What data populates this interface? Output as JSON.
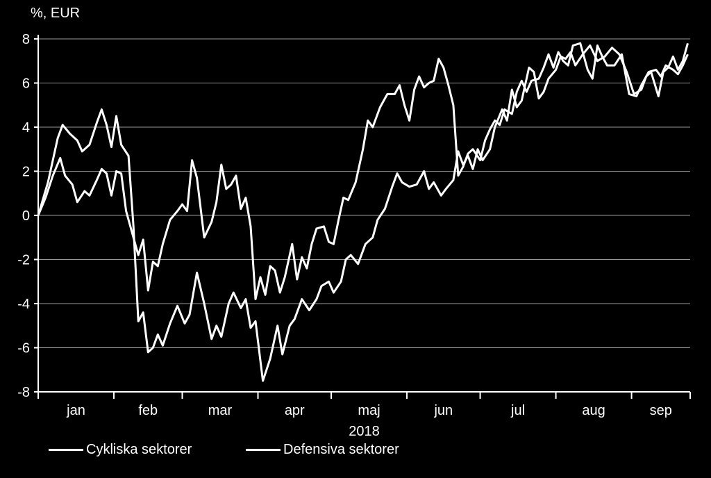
{
  "chart_data": {
    "type": "line",
    "unit_label": "%, EUR",
    "year_label": "2018",
    "xlabel": "",
    "ylabel": "",
    "ylim": [
      -8,
      8
    ],
    "yticks": [
      -8,
      -6,
      -4,
      -2,
      0,
      2,
      4,
      6,
      8
    ],
    "ytick_labels": [
      "-8",
      "-6",
      "-4",
      "-2",
      "0",
      "2",
      "4",
      "6",
      "8"
    ],
    "month_labels": [
      "jan",
      "feb",
      "mar",
      "apr",
      "maj",
      "jun",
      "jul",
      "aug",
      "sep"
    ],
    "grid": true,
    "legend_position": "bottom-left",
    "line_color": "#ffffff",
    "background": "#000000",
    "series": [
      {
        "name": "Cykliska sektorer",
        "points": [
          [
            "2018-01-01",
            0.0
          ],
          [
            "2018-01-05",
            1.5
          ],
          [
            "2018-01-09",
            3.5
          ],
          [
            "2018-01-11",
            4.1
          ],
          [
            "2018-01-14",
            3.7
          ],
          [
            "2018-01-17",
            3.4
          ],
          [
            "2018-01-19",
            2.9
          ],
          [
            "2018-01-22",
            3.2
          ],
          [
            "2018-01-25",
            4.2
          ],
          [
            "2018-01-27",
            4.8
          ],
          [
            "2018-01-29",
            4.1
          ],
          [
            "2018-01-31",
            3.1
          ],
          [
            "2018-02-02",
            4.5
          ],
          [
            "2018-02-04",
            3.2
          ],
          [
            "2018-02-07",
            2.7
          ],
          [
            "2018-02-09",
            -0.5
          ],
          [
            "2018-02-11",
            -4.8
          ],
          [
            "2018-02-13",
            -4.4
          ],
          [
            "2018-02-15",
            -6.2
          ],
          [
            "2018-02-17",
            -6.0
          ],
          [
            "2018-02-19",
            -5.4
          ],
          [
            "2018-02-21",
            -5.9
          ],
          [
            "2018-02-24",
            -4.9
          ],
          [
            "2018-02-27",
            -4.1
          ],
          [
            "2018-03-02",
            -4.9
          ],
          [
            "2018-03-04",
            -4.5
          ],
          [
            "2018-03-07",
            -2.6
          ],
          [
            "2018-03-10",
            -4.0
          ],
          [
            "2018-03-13",
            -5.6
          ],
          [
            "2018-03-15",
            -5.0
          ],
          [
            "2018-03-17",
            -5.5
          ],
          [
            "2018-03-20",
            -4.0
          ],
          [
            "2018-03-22",
            -3.5
          ],
          [
            "2018-03-25",
            -4.2
          ],
          [
            "2018-03-27",
            -3.8
          ],
          [
            "2018-03-29",
            -5.1
          ],
          [
            "2018-03-31",
            -4.8
          ],
          [
            "2018-04-03",
            -7.5
          ],
          [
            "2018-04-06",
            -6.5
          ],
          [
            "2018-04-09",
            -5.0
          ],
          [
            "2018-04-11",
            -6.3
          ],
          [
            "2018-04-14",
            -5.0
          ],
          [
            "2018-04-16",
            -4.7
          ],
          [
            "2018-04-19",
            -3.8
          ],
          [
            "2018-04-22",
            -4.3
          ],
          [
            "2018-04-25",
            -3.8
          ],
          [
            "2018-04-27",
            -3.2
          ],
          [
            "2018-04-30",
            -3.0
          ],
          [
            "2018-05-02",
            -3.5
          ],
          [
            "2018-05-05",
            -3.0
          ],
          [
            "2018-05-07",
            -2.0
          ],
          [
            "2018-05-09",
            -1.8
          ],
          [
            "2018-05-12",
            -2.2
          ],
          [
            "2018-05-15",
            -1.3
          ],
          [
            "2018-05-18",
            -1.0
          ],
          [
            "2018-05-20",
            -0.2
          ],
          [
            "2018-05-23",
            0.3
          ],
          [
            "2018-05-26",
            1.3
          ],
          [
            "2018-05-28",
            1.9
          ],
          [
            "2018-05-30",
            1.5
          ],
          [
            "2018-06-02",
            1.3
          ],
          [
            "2018-06-05",
            1.4
          ],
          [
            "2018-06-08",
            2.0
          ],
          [
            "2018-06-10",
            1.2
          ],
          [
            "2018-06-12",
            1.5
          ],
          [
            "2018-06-15",
            0.9
          ],
          [
            "2018-06-17",
            1.2
          ],
          [
            "2018-06-20",
            1.6
          ],
          [
            "2018-06-22",
            2.9
          ],
          [
            "2018-06-24",
            2.3
          ],
          [
            "2018-06-26",
            2.7
          ],
          [
            "2018-06-28",
            2.1
          ],
          [
            "2018-06-30",
            3.0
          ],
          [
            "2018-07-02",
            2.5
          ],
          [
            "2018-07-05",
            3.0
          ],
          [
            "2018-07-07",
            4.0
          ],
          [
            "2018-07-10",
            4.8
          ],
          [
            "2018-07-12",
            4.3
          ],
          [
            "2018-07-14",
            5.7
          ],
          [
            "2018-07-16",
            4.9
          ],
          [
            "2018-07-18",
            5.2
          ],
          [
            "2018-07-21",
            6.7
          ],
          [
            "2018-07-23",
            6.5
          ],
          [
            "2018-07-25",
            5.3
          ],
          [
            "2018-07-27",
            5.6
          ],
          [
            "2018-07-29",
            6.2
          ],
          [
            "2018-08-01",
            6.6
          ],
          [
            "2018-08-03",
            7.2
          ],
          [
            "2018-08-05",
            7.1
          ],
          [
            "2018-08-07",
            7.4
          ],
          [
            "2018-08-09",
            6.8
          ],
          [
            "2018-08-12",
            7.3
          ],
          [
            "2018-08-15",
            7.7
          ],
          [
            "2018-08-18",
            7.0
          ],
          [
            "2018-08-21",
            7.2
          ],
          [
            "2018-08-24",
            7.6
          ],
          [
            "2018-08-27",
            7.3
          ],
          [
            "2018-08-30",
            6.5
          ],
          [
            "2018-09-02",
            5.5
          ],
          [
            "2018-09-05",
            5.7
          ],
          [
            "2018-09-07",
            6.3
          ],
          [
            "2018-09-09",
            6.5
          ],
          [
            "2018-09-12",
            5.4
          ],
          [
            "2018-09-14",
            6.5
          ],
          [
            "2018-09-16",
            6.7
          ],
          [
            "2018-09-18",
            7.2
          ],
          [
            "2018-09-20",
            6.6
          ],
          [
            "2018-09-22",
            7.0
          ],
          [
            "2018-09-24",
            7.8
          ]
        ]
      },
      {
        "name": "Defensiva sektorer",
        "points": [
          [
            "2018-01-01",
            0.0
          ],
          [
            "2018-01-04",
            0.8
          ],
          [
            "2018-01-07",
            1.8
          ],
          [
            "2018-01-10",
            2.6
          ],
          [
            "2018-01-12",
            1.8
          ],
          [
            "2018-01-15",
            1.4
          ],
          [
            "2018-01-17",
            0.6
          ],
          [
            "2018-01-20",
            1.1
          ],
          [
            "2018-01-22",
            0.9
          ],
          [
            "2018-01-25",
            1.6
          ],
          [
            "2018-01-27",
            2.1
          ],
          [
            "2018-01-29",
            1.9
          ],
          [
            "2018-01-31",
            0.9
          ],
          [
            "2018-02-02",
            2.0
          ],
          [
            "2018-02-04",
            1.9
          ],
          [
            "2018-02-06",
            0.2
          ],
          [
            "2018-02-08",
            -0.6
          ],
          [
            "2018-02-11",
            -1.8
          ],
          [
            "2018-02-13",
            -1.1
          ],
          [
            "2018-02-15",
            -3.4
          ],
          [
            "2018-02-17",
            -2.1
          ],
          [
            "2018-02-19",
            -2.3
          ],
          [
            "2018-02-21",
            -1.3
          ],
          [
            "2018-02-24",
            -0.2
          ],
          [
            "2018-02-27",
            0.2
          ],
          [
            "2018-03-01",
            0.5
          ],
          [
            "2018-03-03",
            0.2
          ],
          [
            "2018-03-05",
            2.5
          ],
          [
            "2018-03-07",
            1.7
          ],
          [
            "2018-03-10",
            -1.0
          ],
          [
            "2018-03-13",
            -0.3
          ],
          [
            "2018-03-15",
            0.6
          ],
          [
            "2018-03-17",
            2.3
          ],
          [
            "2018-03-19",
            1.2
          ],
          [
            "2018-03-21",
            1.4
          ],
          [
            "2018-03-23",
            1.8
          ],
          [
            "2018-03-25",
            0.3
          ],
          [
            "2018-03-27",
            0.8
          ],
          [
            "2018-03-29",
            -0.5
          ],
          [
            "2018-03-31",
            -3.8
          ],
          [
            "2018-04-02",
            -2.8
          ],
          [
            "2018-04-04",
            -3.6
          ],
          [
            "2018-04-06",
            -2.3
          ],
          [
            "2018-04-08",
            -2.5
          ],
          [
            "2018-04-10",
            -3.5
          ],
          [
            "2018-04-12",
            -2.8
          ],
          [
            "2018-04-15",
            -1.3
          ],
          [
            "2018-04-17",
            -2.9
          ],
          [
            "2018-04-19",
            -1.9
          ],
          [
            "2018-04-21",
            -2.4
          ],
          [
            "2018-04-23",
            -1.3
          ],
          [
            "2018-04-25",
            -0.6
          ],
          [
            "2018-04-28",
            -0.5
          ],
          [
            "2018-04-30",
            -1.2
          ],
          [
            "2018-05-02",
            -1.3
          ],
          [
            "2018-05-04",
            -0.2
          ],
          [
            "2018-05-06",
            0.8
          ],
          [
            "2018-05-08",
            0.7
          ],
          [
            "2018-05-11",
            1.5
          ],
          [
            "2018-05-14",
            3.0
          ],
          [
            "2018-05-16",
            4.3
          ],
          [
            "2018-05-18",
            4.0
          ],
          [
            "2018-05-21",
            4.9
          ],
          [
            "2018-05-24",
            5.5
          ],
          [
            "2018-05-27",
            5.5
          ],
          [
            "2018-05-29",
            5.9
          ],
          [
            "2018-05-31",
            5.0
          ],
          [
            "2018-06-02",
            4.3
          ],
          [
            "2018-06-04",
            5.7
          ],
          [
            "2018-06-06",
            6.3
          ],
          [
            "2018-06-08",
            5.8
          ],
          [
            "2018-06-10",
            6.0
          ],
          [
            "2018-06-12",
            6.1
          ],
          [
            "2018-06-14",
            7.1
          ],
          [
            "2018-06-16",
            6.7
          ],
          [
            "2018-06-18",
            5.9
          ],
          [
            "2018-06-20",
            5.0
          ],
          [
            "2018-06-22",
            1.8
          ],
          [
            "2018-06-24",
            2.2
          ],
          [
            "2018-06-26",
            2.8
          ],
          [
            "2018-06-28",
            3.0
          ],
          [
            "2018-07-01",
            2.5
          ],
          [
            "2018-07-03",
            3.4
          ],
          [
            "2018-07-05",
            3.9
          ],
          [
            "2018-07-07",
            4.3
          ],
          [
            "2018-07-09",
            4.1
          ],
          [
            "2018-07-11",
            4.8
          ],
          [
            "2018-07-14",
            4.6
          ],
          [
            "2018-07-16",
            5.6
          ],
          [
            "2018-07-18",
            6.1
          ],
          [
            "2018-07-20",
            5.6
          ],
          [
            "2018-07-22",
            6.1
          ],
          [
            "2018-07-25",
            6.2
          ],
          [
            "2018-07-27",
            6.7
          ],
          [
            "2018-07-29",
            7.3
          ],
          [
            "2018-07-31",
            6.7
          ],
          [
            "2018-08-02",
            7.4
          ],
          [
            "2018-08-04",
            7.0
          ],
          [
            "2018-08-06",
            6.8
          ],
          [
            "2018-08-08",
            7.7
          ],
          [
            "2018-08-11",
            7.8
          ],
          [
            "2018-08-14",
            6.6
          ],
          [
            "2018-08-16",
            6.2
          ],
          [
            "2018-08-18",
            7.7
          ],
          [
            "2018-08-20",
            7.2
          ],
          [
            "2018-08-22",
            6.8
          ],
          [
            "2018-08-25",
            6.8
          ],
          [
            "2018-08-28",
            7.3
          ],
          [
            "2018-08-31",
            5.5
          ],
          [
            "2018-09-03",
            5.4
          ],
          [
            "2018-09-05",
            5.9
          ],
          [
            "2018-09-08",
            6.5
          ],
          [
            "2018-09-11",
            6.6
          ],
          [
            "2018-09-13",
            6.3
          ],
          [
            "2018-09-15",
            6.8
          ],
          [
            "2018-09-18",
            6.6
          ],
          [
            "2018-09-20",
            6.4
          ],
          [
            "2018-09-22",
            6.8
          ],
          [
            "2018-09-24",
            7.3
          ]
        ]
      }
    ]
  }
}
